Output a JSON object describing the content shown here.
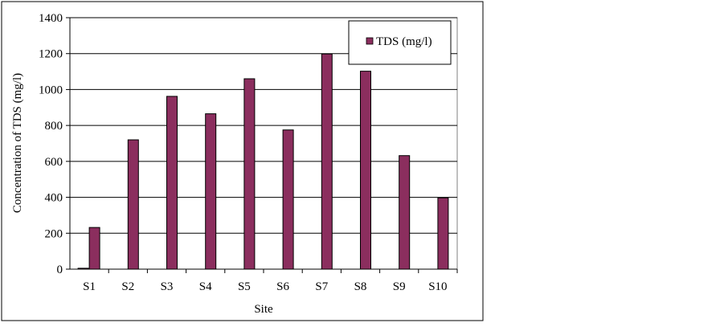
{
  "chart_data": {
    "type": "bar",
    "title": "",
    "xlabel": "Site",
    "ylabel": "Concentration of TDS (mg/l)",
    "categories": [
      "S1",
      "S2",
      "S3",
      "S4",
      "S5",
      "S6",
      "S7",
      "S8",
      "S9",
      "S10"
    ],
    "series": [
      {
        "name": "",
        "values": [
          5,
          0,
          0,
          0,
          0,
          0,
          0,
          0,
          0,
          0
        ],
        "color": "#8B2E5E"
      },
      {
        "name": "TDS (mg/l)",
        "values": [
          232,
          720,
          962,
          865,
          1060,
          775,
          1198,
          1102,
          632,
          397
        ],
        "color": "#8B2E5E"
      }
    ],
    "ylim": [
      0,
      1400
    ],
    "yticks": [
      0,
      200,
      400,
      600,
      800,
      1000,
      1200,
      1400
    ],
    "grid": true,
    "legend": "top-right"
  }
}
